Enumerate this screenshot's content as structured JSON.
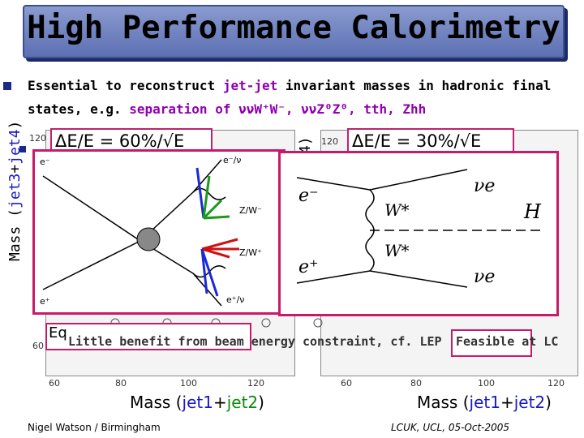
{
  "title": "High Performance Calorimetry",
  "bullet": {
    "line1_a": "Essential to reconstruct ",
    "line1_b": "jet-jet",
    "line1_c": " invariant masses in hadronic final",
    "line2_a": "states, e.g. ",
    "line2_b": "separation of",
    "line2_c": " ννW⁺W⁻, ννZ⁰Z⁰, tth, Zhh"
  },
  "left_ylabel": {
    "a": "Mass (",
    "b": "jet3",
    "c": "+",
    "d": "jet4",
    "e": ")"
  },
  "mid_ylabel": "4)",
  "resolution_left": "ΔE/E = 60%/√E",
  "resolution_right": "ΔE/E = 30%/√E",
  "overlay_text": {
    "a": "Eq",
    "b": "Little benefit from beam energy constraint, cf. LEP",
    "c": "Feasible at LC"
  },
  "ticks": {
    "left_x": [
      "60",
      "80",
      "100",
      "120"
    ],
    "right_x": [
      "60",
      "80",
      "100",
      "120"
    ],
    "left_y": [
      "120",
      "60"
    ],
    "right_y": [
      "120"
    ]
  },
  "feynman_left": {
    "labels": [
      "e⁻",
      "e⁺",
      "e⁻/ν",
      "Z/W⁻",
      "Z/W⁺",
      "e⁺/ν"
    ]
  },
  "feynman_right": {
    "labels": [
      "e⁻",
      "e⁺",
      "W*",
      "W*",
      "νe",
      "νe",
      "H"
    ]
  },
  "bottom_left_label": {
    "a": "Mass (",
    "b": "jet1",
    "c": "+",
    "d": "jet2",
    "e": ")"
  },
  "bottom_right_label": {
    "a": "Mass (",
    "b": "jet1",
    "c": "+",
    "d": "jet2",
    "e": ")"
  },
  "footer_left": "Nigel Watson / Birmingham",
  "footer_right": "LCUK, UCL, 05-Oct-2005",
  "colors": {
    "title_bg": "#6f80c0",
    "accent": "#c81a6a",
    "purple": "#9000b0",
    "blue": "#1818c8",
    "green": "#0a8a0a"
  }
}
